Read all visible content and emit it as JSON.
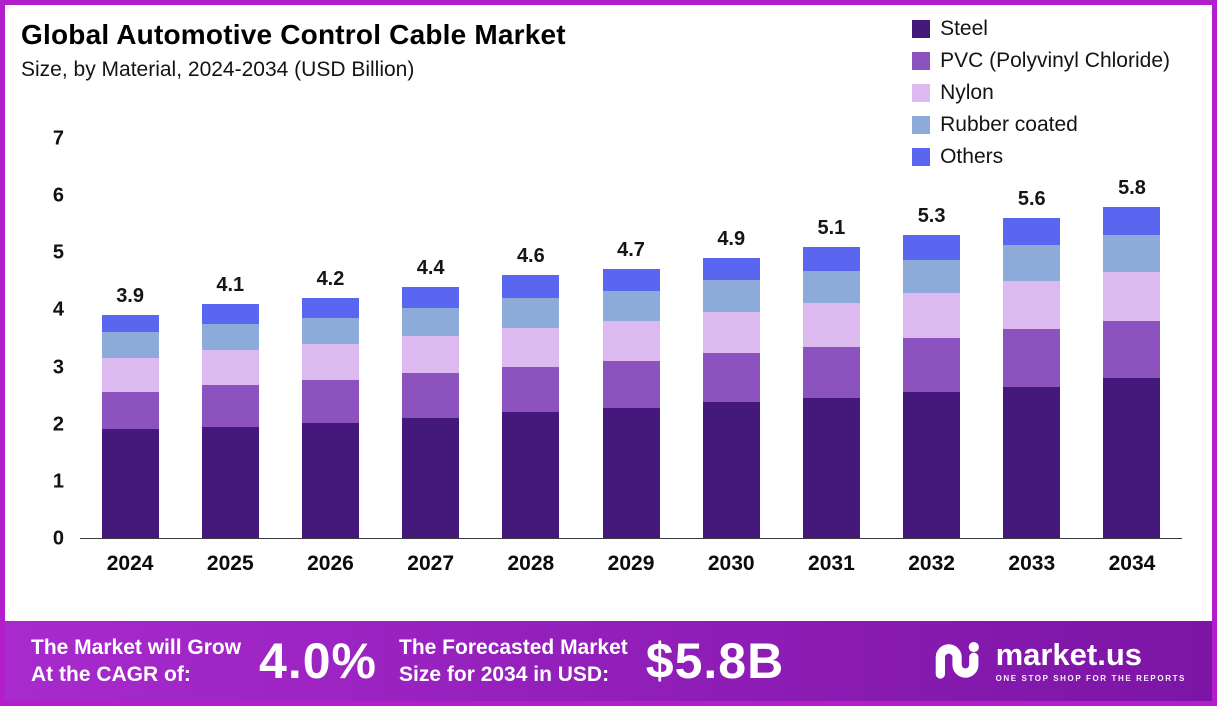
{
  "header": {
    "title": "Global Automotive Control Cable Market",
    "subtitle": "Size, by Material, 2024-2034 (USD Billion)"
  },
  "chart_data": {
    "type": "bar",
    "stacked": true,
    "title": "Global Automotive Control Cable Market Size, by Material, 2024-2034 (USD Billion)",
    "xlabel": "",
    "ylabel": "",
    "ylim": [
      0,
      7
    ],
    "yticks": [
      0,
      1,
      2,
      3,
      4,
      5,
      6,
      7
    ],
    "grid": false,
    "legend_position": "top-right",
    "categories": [
      "2024",
      "2025",
      "2026",
      "2027",
      "2028",
      "2029",
      "2030",
      "2031",
      "2032",
      "2033",
      "2034"
    ],
    "series": [
      {
        "name": "Steel",
        "color": "#45197c",
        "values": [
          1.9,
          1.95,
          2.02,
          2.1,
          2.2,
          2.28,
          2.38,
          2.45,
          2.55,
          2.65,
          2.8
        ]
      },
      {
        "name": "PVC (Polyvinyl Chloride)",
        "color": "#8c52bd",
        "values": [
          0.65,
          0.72,
          0.75,
          0.78,
          0.8,
          0.82,
          0.85,
          0.9,
          0.95,
          1.0,
          1.0
        ]
      },
      {
        "name": "Nylon",
        "color": "#dcb9ef",
        "values": [
          0.6,
          0.62,
          0.63,
          0.65,
          0.68,
          0.7,
          0.73,
          0.76,
          0.79,
          0.85,
          0.85
        ]
      },
      {
        "name": "Rubber coated",
        "color": "#8cabd8",
        "values": [
          0.45,
          0.46,
          0.45,
          0.5,
          0.52,
          0.52,
          0.55,
          0.57,
          0.58,
          0.62,
          0.65
        ]
      },
      {
        "name": "Others",
        "color": "#5a66ef",
        "values": [
          0.3,
          0.35,
          0.35,
          0.37,
          0.4,
          0.38,
          0.39,
          0.42,
          0.43,
          0.48,
          0.5
        ]
      }
    ],
    "totals": [
      3.9,
      4.1,
      4.2,
      4.4,
      4.6,
      4.7,
      4.9,
      5.1,
      5.3,
      5.6,
      5.8
    ]
  },
  "banner": {
    "grow_line1": "The Market will Grow",
    "grow_line2": "At the CAGR of:",
    "cagr_value": "4.0%",
    "forecast_line1": "The Forecasted Market",
    "forecast_line2": "Size for 2034 in USD:",
    "forecast_value": "$5.8B",
    "logo_name": "market.us",
    "logo_tagline": "ONE STOP SHOP FOR THE REPORTS"
  }
}
